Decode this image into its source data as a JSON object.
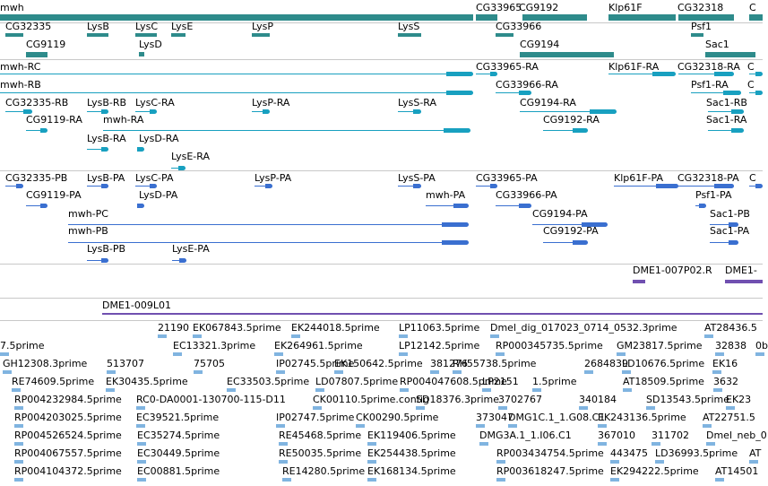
{
  "colors": {
    "gene": "#2e8b8b",
    "transcript": "#18a0c0",
    "protein": "#3a6fd0",
    "clone": "#7050b0",
    "est": "#80b4e0",
    "separator": "#c8c8c8"
  },
  "tracks": {
    "genes": {
      "features": [
        {
          "label": "mwh"
        },
        {
          "label": "CG33965"
        },
        {
          "label": "CG9192"
        },
        {
          "label": "Klp61F"
        },
        {
          "label": "CG32318"
        },
        {
          "label": "C"
        },
        {
          "label": "CG32335"
        },
        {
          "label": "LysB"
        },
        {
          "label": "LysC"
        },
        {
          "label": "LysE"
        },
        {
          "label": "LysP"
        },
        {
          "label": "LysS"
        },
        {
          "label": "CG33966"
        },
        {
          "label": "Psf1"
        },
        {
          "label": "CG9119"
        },
        {
          "label": "LysD"
        },
        {
          "label": "CG9194"
        },
        {
          "label": "Sac1"
        }
      ]
    },
    "transcripts": {
      "features": [
        {
          "label": "mwh-RC"
        },
        {
          "label": "CG33965-RA"
        },
        {
          "label": "Klp61F-RA"
        },
        {
          "label": "CG32318-RA"
        },
        {
          "label": "C"
        },
        {
          "label": "mwh-RB"
        },
        {
          "label": "CG33966-RA"
        },
        {
          "label": "Psf1-RA"
        },
        {
          "label": "C"
        },
        {
          "label": "CG32335-RB"
        },
        {
          "label": "LysB-RB"
        },
        {
          "label": "LysC-RA"
        },
        {
          "label": "LysP-RA"
        },
        {
          "label": "LysS-RA"
        },
        {
          "label": "CG9194-RA"
        },
        {
          "label": "Sac1-RB"
        },
        {
          "label": "CG9119-RA"
        },
        {
          "label": "mwh-RA"
        },
        {
          "label": "CG9192-RA"
        },
        {
          "label": "Sac1-RA"
        },
        {
          "label": "LysB-RA"
        },
        {
          "label": "LysD-RA"
        },
        {
          "label": "LysE-RA"
        }
      ]
    },
    "proteins": {
      "features": [
        {
          "label": "CG32335-PB"
        },
        {
          "label": "LysB-PA"
        },
        {
          "label": "LysC-PA"
        },
        {
          "label": "LysP-PA"
        },
        {
          "label": "LysS-PA"
        },
        {
          "label": "CG33965-PA"
        },
        {
          "label": "Klp61F-PA"
        },
        {
          "label": "CG32318-PA"
        },
        {
          "label": "C"
        },
        {
          "label": "CG9119-PA"
        },
        {
          "label": "LysD-PA"
        },
        {
          "label": "mwh-PA"
        },
        {
          "label": "CG33966-PA"
        },
        {
          "label": "Psf1-PA"
        },
        {
          "label": "mwh-PC"
        },
        {
          "label": "CG9194-PA"
        },
        {
          "label": "Sac1-PB"
        },
        {
          "label": "mwh-PB"
        },
        {
          "label": "CG9192-PA"
        },
        {
          "label": "Sac1-PA"
        },
        {
          "label": "LysB-PB"
        },
        {
          "label": "LysE-PA"
        }
      ]
    },
    "clones_a": {
      "features": [
        {
          "label": "DME1-007P02.R"
        },
        {
          "label": "DME1-"
        }
      ]
    },
    "clones_b": {
      "features": [
        {
          "label": "DME1-009L01"
        }
      ]
    },
    "ests": {
      "rows": [
        [
          "21190",
          "EK067843.5prime",
          "EK244018.5prime",
          "LP11063.5prime",
          "Dmel_dig_017023_0714_0532.3prime",
          "AT28436.5"
        ],
        [
          "7.5prime",
          "EC13321.3prime",
          "EK264961.5prime",
          "LP12142.5prime",
          "RP000345735.5prime",
          "GM23817.5prime",
          "32838",
          "0b"
        ],
        [
          "GH12308.3prime",
          "513707",
          "75705",
          "IP02745.5prime",
          "EK150642.5prime",
          "381276",
          "RH55738.5prime",
          "2684839",
          "LD10676.5prime",
          "EK16"
        ],
        [
          "RE74609.5prime",
          "EK30435.5prime",
          "EC33503.5prime",
          "LD07807.5prime",
          "RP004047608.5prime",
          "LP2151",
          "1.5prime",
          "AT18509.5prime",
          "3632"
        ],
        [
          "RP004232984.5prime",
          "RC0-DA0001-130700-115-D11",
          "CK00110.5prime.contig",
          "SD18376.3prime",
          "3702767",
          "340184",
          "SD13543.5prime",
          "EK23"
        ],
        [
          "RP004203025.5prime",
          "EC39521.5prime",
          "IP02747.5prime",
          "CK00290.5prime",
          "373047",
          "DMG1C.1_1.G08.C1",
          "EK243136.5prime",
          "AT22751.5"
        ],
        [
          "RP004526524.5prime",
          "EC35274.5prime",
          "RE45468.5prime",
          "EK119406.5prime",
          "DMG3A.1_1.I06.C1",
          "367010",
          "311702",
          "Dmel_neb_0"
        ],
        [
          "RP004067557.5prime",
          "EC30449.5prime",
          "RE50035.5prime",
          "EK254438.5prime",
          "RP003434754.5prime",
          "443475",
          "LD36993.5prime",
          "AT"
        ],
        [
          "RP004104372.5prime",
          "EC00881.5prime",
          "RE14280.5prime",
          "EK168134.5prime",
          "RP003618247.5prime",
          "EK294222.5prime",
          "AT14501"
        ]
      ]
    }
  }
}
